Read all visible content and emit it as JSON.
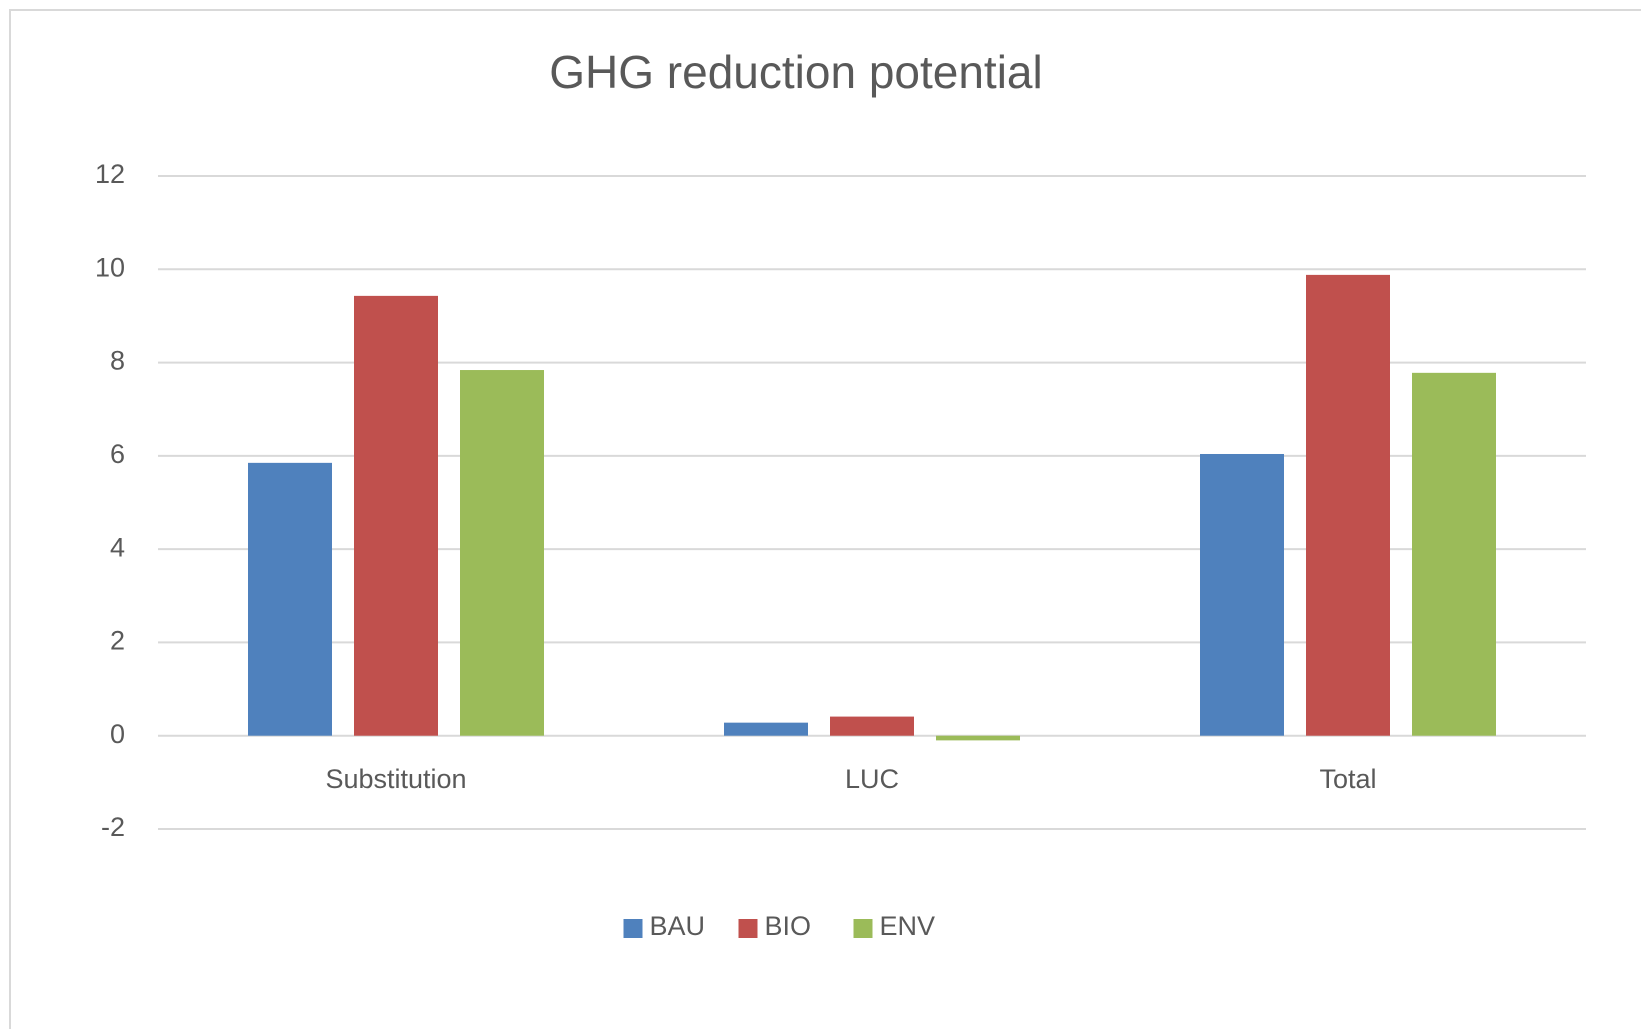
{
  "chart_data": {
    "type": "bar",
    "title": "GHG reduction potential",
    "categories": [
      "Substitution",
      "LUC",
      "Total"
    ],
    "series": [
      {
        "name": "BAU",
        "color": "#4f81bd",
        "values": [
          5.85,
          0.28,
          6.04
        ]
      },
      {
        "name": "BIO",
        "color": "#c0504d",
        "values": [
          9.43,
          0.41,
          9.88
        ]
      },
      {
        "name": "ENV",
        "color": "#9bbb59",
        "values": [
          7.84,
          -0.1,
          7.78
        ]
      }
    ],
    "ylim": [
      -2,
      12
    ],
    "yticks": [
      -2,
      0,
      2,
      4,
      6,
      8,
      10,
      12
    ],
    "grid": true,
    "legend": "bottom"
  }
}
